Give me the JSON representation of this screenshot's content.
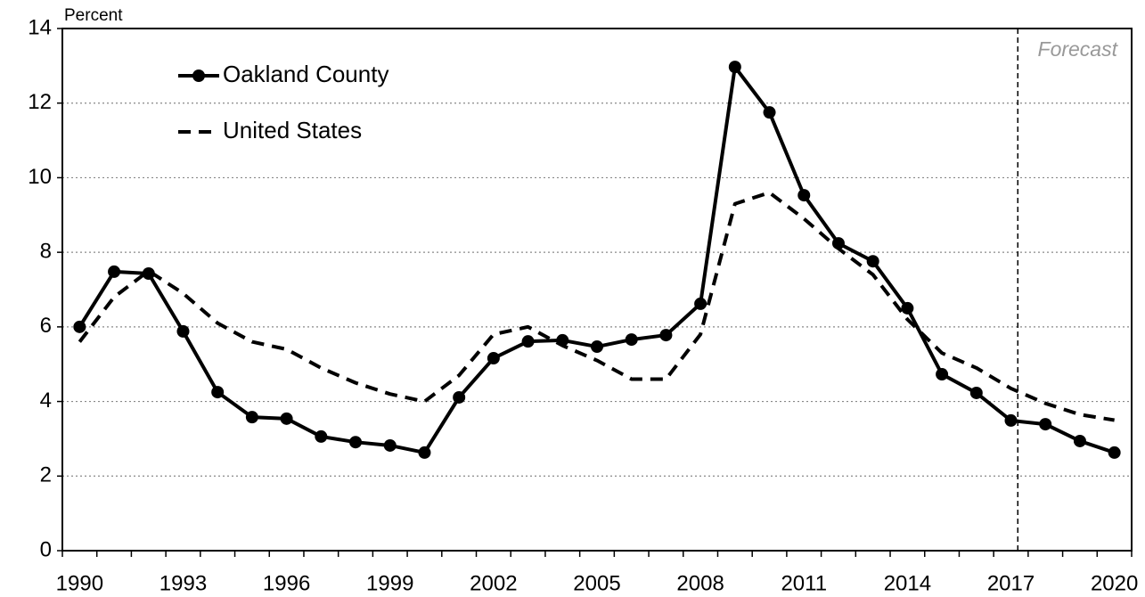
{
  "chart_data": {
    "type": "line",
    "y_label": "Percent",
    "annotation": "Forecast",
    "categories": [
      "1990",
      null,
      null,
      "1993",
      null,
      null,
      "1996",
      null,
      null,
      "1999",
      null,
      null,
      "2002",
      null,
      null,
      "2005",
      null,
      null,
      "2008",
      null,
      null,
      "2011",
      null,
      null,
      "2014",
      null,
      null,
      "2017",
      null,
      null,
      "2020"
    ],
    "series": [
      {
        "name": "Oakland County",
        "color": "#000000",
        "style": "solid-markers",
        "values": [
          6.0,
          7.48,
          7.43,
          5.88,
          4.25,
          3.58,
          3.54,
          3.06,
          2.91,
          2.82,
          2.63,
          4.11,
          5.16,
          5.61,
          5.64,
          5.47,
          5.66,
          5.78,
          6.62,
          12.97,
          11.75,
          9.53,
          8.24,
          7.76,
          6.5,
          4.73,
          4.23,
          3.49,
          3.39,
          2.94,
          2.63
        ]
      },
      {
        "name": "United States",
        "color": "#000000",
        "style": "dashed",
        "values": [
          5.6,
          6.8,
          7.5,
          6.9,
          6.1,
          5.6,
          5.4,
          4.9,
          4.5,
          4.2,
          4.0,
          4.7,
          5.8,
          6.0,
          5.5,
          5.1,
          4.6,
          4.6,
          5.8,
          9.3,
          9.6,
          8.9,
          8.1,
          7.4,
          6.2,
          5.3,
          4.9,
          4.35,
          3.95,
          3.65,
          3.5
        ]
      }
    ],
    "ylim": [
      0,
      14
    ],
    "yticks": [
      0,
      2,
      4,
      6,
      8,
      10,
      12,
      14
    ],
    "grid": true,
    "legend": "top-left"
  }
}
